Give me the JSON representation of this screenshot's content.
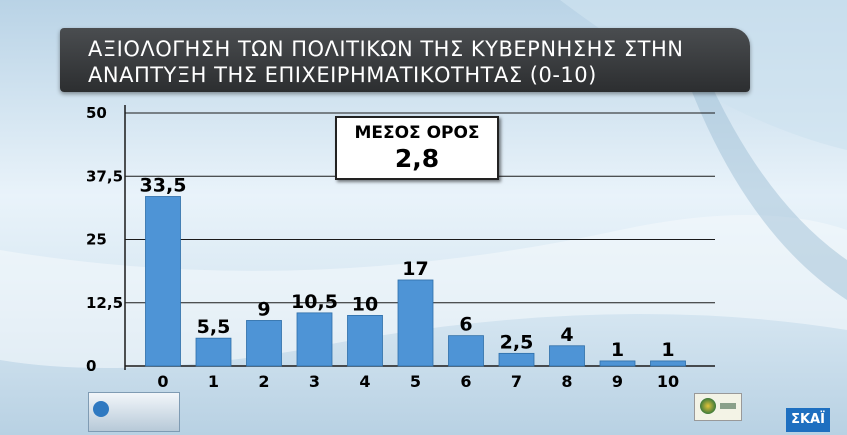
{
  "chart_data": {
    "type": "bar",
    "title": "ΑΞΙΟΛΟΓΗΣΗ ΤΩΝ ΠΟΛΙΤΙΚΩΝ ΤΗΣ ΚΥΒΕΡΝΗΣΗΣ ΣΤΗΝ ΑΝΑΠΤΥΞΗ ΤΗΣ ΕΠΙΧΕΙΡΗΜΑΤΙΚΟΤΗΤΑΣ (0-10)",
    "title_lines": [
      "ΑΞΙΟΛΟΓΗΣΗ ΤΩΝ ΠΟΛΙΤΙΚΩΝ ΤΗΣ ΚΥΒΕΡΝΗΣΗΣ ΣΤΗΝ",
      "ΑΝΑΠΤΥΞΗ ΤΗΣ ΕΠΙΧΕΙΡΗΜΑΤΙΚΟΤΗΤΑΣ (0-10)"
    ],
    "categories": [
      "0",
      "1",
      "2",
      "3",
      "4",
      "5",
      "6",
      "7",
      "8",
      "9",
      "10"
    ],
    "values": [
      33.5,
      5.5,
      9,
      10.5,
      10,
      17,
      6,
      2.5,
      4,
      1,
      1
    ],
    "data_labels": [
      "33,5",
      "5,5",
      "9",
      "10,5",
      "10",
      "17",
      "6",
      "2,5",
      "4",
      "1",
      "1"
    ],
    "ylim": [
      0,
      50
    ],
    "y_ticks": [
      0,
      12.5,
      25,
      37.5,
      50
    ],
    "y_tick_labels": [
      "0",
      "12,5",
      "25",
      "37,5",
      "50"
    ],
    "grid": true,
    "bar_color": "#4e94d6",
    "xlabel": "",
    "ylabel": "",
    "annotation": {
      "label": "ΜΕΣΟΣ ΟΡΟΣ",
      "value": "2,8"
    }
  },
  "branding": {
    "channel_logo_text": "ΣΚΑΪ"
  }
}
